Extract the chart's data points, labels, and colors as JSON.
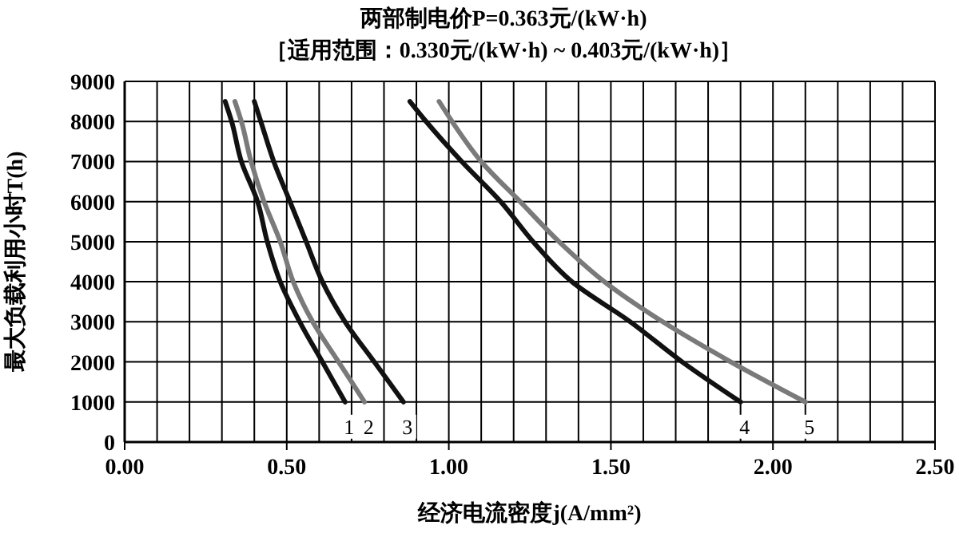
{
  "chart_data": {
    "type": "line",
    "title": "两部制电价P=0.363元/(kW·h)",
    "subtitle": "［适用范围：0.330元/(kW·h) ~ 0.403元/(kW·h)］",
    "xlabel": "经济电流密度j(A/mm²)",
    "ylabel": "最大负载利用小时T(h)",
    "xlim": [
      0,
      2.5
    ],
    "ylim": [
      0,
      9000
    ],
    "xticks": [
      {
        "value": 0,
        "label": "0.00"
      },
      {
        "value": 0.1,
        "label": null
      },
      {
        "value": 0.2,
        "label": null
      },
      {
        "value": 0.3,
        "label": null
      },
      {
        "value": 0.4,
        "label": null
      },
      {
        "value": 0.5,
        "label": "0.50"
      },
      {
        "value": 0.6,
        "label": null
      },
      {
        "value": 0.7,
        "label": null
      },
      {
        "value": 0.8,
        "label": null
      },
      {
        "value": 0.9,
        "label": null
      },
      {
        "value": 1,
        "label": "1.00"
      },
      {
        "value": 1.1,
        "label": null
      },
      {
        "value": 1.2,
        "label": null
      },
      {
        "value": 1.3,
        "label": null
      },
      {
        "value": 1.4,
        "label": null
      },
      {
        "value": 1.5,
        "label": "1.50"
      },
      {
        "value": 1.6,
        "label": null
      },
      {
        "value": 1.7,
        "label": null
      },
      {
        "value": 1.8,
        "label": null
      },
      {
        "value": 1.9,
        "label": null
      },
      {
        "value": 2,
        "label": "2.00"
      },
      {
        "value": 2.1,
        "label": null
      },
      {
        "value": 2.2,
        "label": null
      },
      {
        "value": 2.3,
        "label": null
      },
      {
        "value": 2.4,
        "label": null
      },
      {
        "value": 2.5,
        "label": "2.50"
      }
    ],
    "yticks": [
      0,
      1000,
      2000,
      3000,
      4000,
      5000,
      6000,
      7000,
      8000,
      9000
    ],
    "grid": true,
    "marker": "none",
    "line_style": "solid",
    "series": [
      {
        "name": "1",
        "color": "#111111",
        "x": [
          0.31,
          0.33,
          0.36,
          0.41,
          0.44,
          0.48,
          0.54,
          0.61,
          0.68
        ],
        "values": [
          8500,
          8000,
          7000,
          6000,
          5000,
          4000,
          3000,
          2000,
          1000
        ]
      },
      {
        "name": "2",
        "color": "#7a7a7a",
        "x": [
          0.34,
          0.36,
          0.39,
          0.43,
          0.48,
          0.52,
          0.58,
          0.66,
          0.74
        ],
        "values": [
          8500,
          8000,
          7000,
          6000,
          5000,
          4000,
          3000,
          2000,
          1000
        ]
      },
      {
        "name": "3",
        "color": "#111111",
        "x": [
          0.4,
          0.42,
          0.46,
          0.51,
          0.56,
          0.61,
          0.68,
          0.77,
          0.86
        ],
        "values": [
          8500,
          8000,
          7000,
          6000,
          5000,
          4000,
          3000,
          2000,
          1000
        ]
      },
      {
        "name": "4",
        "color": "#111111",
        "x": [
          0.88,
          0.93,
          1.04,
          1.16,
          1.26,
          1.38,
          1.56,
          1.72,
          1.9
        ],
        "values": [
          8500,
          8000,
          7000,
          6000,
          5000,
          4000,
          3000,
          2000,
          1000
        ]
      },
      {
        "name": "5",
        "color": "#7a7a7a",
        "x": [
          0.97,
          1.01,
          1.1,
          1.22,
          1.34,
          1.48,
          1.66,
          1.87,
          2.1
        ],
        "values": [
          8500,
          8000,
          7000,
          6000,
          5000,
          4000,
          3000,
          2000,
          1000
        ]
      }
    ]
  }
}
